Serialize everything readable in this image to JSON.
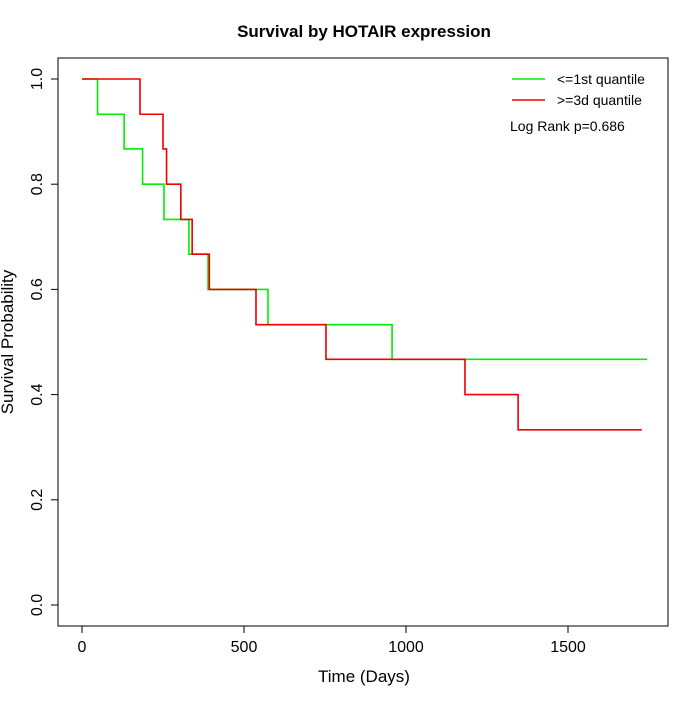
{
  "chart_data": {
    "type": "line",
    "step": true,
    "title": "Survival by HOTAIR expression",
    "xlabel": "Time (Days)",
    "ylabel": "Survival Probability",
    "xlim": [
      0,
      1800
    ],
    "ylim": [
      0,
      1.0
    ],
    "xticks": [
      0,
      500,
      1000,
      1500
    ],
    "xtick_labels": [
      "0",
      "500",
      "1000",
      "1500"
    ],
    "yticks": [
      0,
      0.2,
      0.4,
      0.6,
      0.8,
      1.0
    ],
    "ytick_labels": [
      "0.0",
      "0.2",
      "0.4",
      "0.6",
      "0.8",
      "1.0"
    ],
    "grid": false,
    "legend_position": "top-right",
    "annotation": "Log Rank p=0.686",
    "series": [
      {
        "name": "<=1st quantile",
        "color": "#00ee00",
        "x": [
          0,
          48,
          130,
          187,
          253,
          330,
          389,
          574,
          957,
          1744
        ],
        "y": [
          1.0,
          0.933,
          0.867,
          0.8,
          0.733,
          0.667,
          0.6,
          0.533,
          0.467,
          0.467
        ]
      },
      {
        "name": ">=3d quantile",
        "color": "#ee0000",
        "x": [
          0,
          179,
          250,
          261,
          305,
          340,
          393,
          537,
          753,
          1182,
          1346,
          1728
        ],
        "y": [
          1.0,
          0.933,
          0.867,
          0.8,
          0.733,
          0.667,
          0.6,
          0.533,
          0.467,
          0.4,
          0.333,
          0.333
        ]
      }
    ]
  }
}
